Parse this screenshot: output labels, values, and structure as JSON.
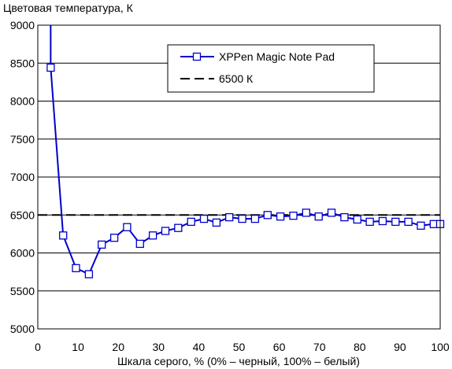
{
  "chart_data": {
    "type": "line",
    "title": "",
    "ylabel": "Цветовая температура, К",
    "xlabel": "Шкала серого, % (0% – черный, 100% – белый)",
    "xlim": [
      0,
      100
    ],
    "ylim": [
      5000,
      9000
    ],
    "x_ticks": [
      "0",
      "10",
      "20",
      "30",
      "40",
      "50",
      "60",
      "70",
      "80",
      "90",
      "100"
    ],
    "y_ticks": [
      "5000",
      "5500",
      "6000",
      "6500",
      "7000",
      "7500",
      "8000",
      "8500",
      "9000"
    ],
    "grid": "horizontal",
    "legend_position": "top-right",
    "series": [
      {
        "name": "XPPen Magic Note Pad",
        "color": "#0000cc",
        "marker": "square",
        "x": [
          3.2,
          6.3,
          9.5,
          12.7,
          15.9,
          19.0,
          22.2,
          25.4,
          28.6,
          31.7,
          34.9,
          38.1,
          41.3,
          44.4,
          47.6,
          50.8,
          54.0,
          57.1,
          60.3,
          63.5,
          66.7,
          69.8,
          73.0,
          76.2,
          79.4,
          82.5,
          85.7,
          88.9,
          92.1,
          95.2,
          98.4,
          100
        ],
        "y": [
          8440,
          6230,
          5800,
          5720,
          6110,
          6200,
          6340,
          6120,
          6230,
          6290,
          6330,
          6410,
          6450,
          6400,
          6470,
          6450,
          6450,
          6500,
          6480,
          6490,
          6530,
          6480,
          6530,
          6470,
          6440,
          6410,
          6420,
          6410,
          6410,
          6360,
          6380,
          6380
        ],
        "leading_segment": {
          "x": [
            3.2,
            3.2
          ],
          "y": [
            9000,
            8440
          ]
        }
      },
      {
        "name": "6500 К",
        "color": "#000000",
        "style": "dashed",
        "x": [
          0,
          100
        ],
        "y": [
          6500,
          6500
        ]
      }
    ]
  }
}
